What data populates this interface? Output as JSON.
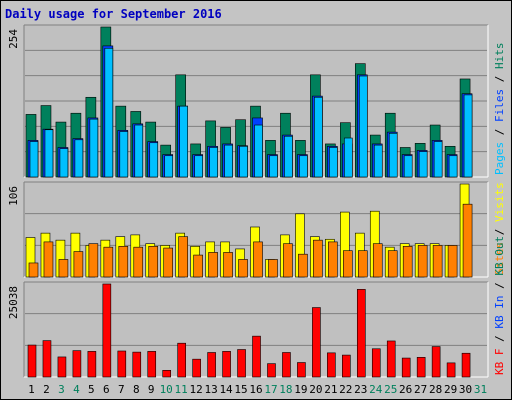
{
  "title": "Daily usage for September 2016",
  "colors": {
    "hits": "#00805c",
    "files": "#0040ff",
    "pages": "#00c0ff",
    "visits": "#ffff00",
    "sites": "#ff8000",
    "kbin": "#0040ff",
    "kbout": "#00805c",
    "kbf": "#ff0000",
    "weekend_day_label": "#00805c",
    "weekday_label": "#000000",
    "panel_bg": "#c0c0c0",
    "frame_bg": "#c4c4c4"
  },
  "chart_data": [
    {
      "type": "bar",
      "title": "Daily usage for September 2016",
      "categories": [
        "1",
        "2",
        "3",
        "4",
        "5",
        "6",
        "7",
        "8",
        "9",
        "10",
        "11",
        "12",
        "13",
        "14",
        "15",
        "16",
        "17",
        "18",
        "19",
        "20",
        "21",
        "22",
        "23",
        "24",
        "25",
        "26",
        "27",
        "28",
        "29",
        "30",
        "31"
      ],
      "weekend_days": [
        "3",
        "4",
        "10",
        "11",
        "17",
        "18",
        "24",
        "25",
        "31"
      ],
      "ymax_label": "254",
      "ylim": [
        0,
        254
      ],
      "axis_legend": [
        {
          "text": "Pages",
          "color_key": "pages"
        },
        {
          "text": " / ",
          "color_key": "weekday_label"
        },
        {
          "text": "Files",
          "color_key": "files"
        },
        {
          "text": " / ",
          "color_key": "weekday_label"
        },
        {
          "text": "Hits",
          "color_key": "hits"
        }
      ],
      "series": [
        {
          "name": "Hits",
          "color_key": "hits",
          "values": [
            106,
            121,
            93,
            108,
            135,
            254,
            120,
            111,
            93,
            54,
            173,
            56,
            95,
            84,
            97,
            120,
            62,
            108,
            62,
            173,
            56,
            92,
            192,
            71,
            108,
            50,
            57,
            88,
            52,
            166,
            0
          ]
        },
        {
          "name": "Files",
          "color_key": "files",
          "values": [
            62,
            81,
            50,
            65,
            100,
            222,
            79,
            90,
            60,
            38,
            120,
            38,
            52,
            56,
            53,
            100,
            38,
            71,
            38,
            137,
            52,
            56,
            173,
            56,
            76,
            38,
            45,
            62,
            38,
            141,
            0
          ]
        },
        {
          "name": "Pages",
          "color_key": "pages",
          "values": [
            60,
            80,
            48,
            63,
            98,
            218,
            77,
            88,
            58,
            36,
            120,
            36,
            50,
            54,
            52,
            88,
            36,
            69,
            36,
            135,
            50,
            66,
            171,
            54,
            74,
            36,
            43,
            60,
            36,
            139,
            0
          ]
        }
      ]
    },
    {
      "type": "bar",
      "ymax_label": "106",
      "ylim": [
        0,
        106
      ],
      "axis_legend": [
        {
          "text": "Sites",
          "color_key": "sites"
        },
        {
          "text": " / ",
          "color_key": "weekday_label"
        },
        {
          "text": "Visits",
          "color_key": "visits"
        }
      ],
      "series": [
        {
          "name": "Visits",
          "color_key": "visits",
          "values": [
            45,
            50,
            42,
            50,
            36,
            42,
            46,
            48,
            38,
            36,
            50,
            35,
            40,
            40,
            32,
            57,
            20,
            48,
            72,
            46,
            43,
            74,
            50,
            75,
            34,
            38,
            38,
            38,
            36,
            106,
            0
          ]
        },
        {
          "name": "Sites",
          "color_key": "sites",
          "values": [
            16,
            40,
            20,
            29,
            38,
            34,
            35,
            34,
            35,
            33,
            46,
            25,
            28,
            28,
            20,
            40,
            20,
            38,
            26,
            42,
            40,
            30,
            30,
            38,
            30,
            35,
            36,
            36,
            36,
            83,
            0
          ]
        }
      ]
    },
    {
      "type": "bar",
      "ymax_label": "25038",
      "ylim": [
        0,
        25038
      ],
      "axis_legend": [
        {
          "text": "KB F",
          "color_key": "kbf"
        },
        {
          "text": " / ",
          "color_key": "weekday_label"
        },
        {
          "text": "KB In",
          "color_key": "kbin"
        },
        {
          "text": " / ",
          "color_key": "weekday_label"
        },
        {
          "text": "KB Out",
          "color_key": "kbout"
        }
      ],
      "series": [
        {
          "name": "KB F",
          "color_key": "kbf",
          "values": [
            8600,
            9800,
            5400,
            7100,
            6900,
            25038,
            7000,
            6700,
            6900,
            1800,
            9100,
            4800,
            6600,
            6900,
            7400,
            11000,
            3600,
            6600,
            3900,
            18700,
            6500,
            5900,
            23600,
            7600,
            9700,
            5100,
            5300,
            8200,
            3800,
            6400,
            0
          ]
        }
      ]
    }
  ],
  "x_labels": [
    "1",
    "2",
    "3",
    "4",
    "5",
    "6",
    "7",
    "8",
    "9",
    "10",
    "11",
    "12",
    "13",
    "14",
    "15",
    "16",
    "17",
    "18",
    "19",
    "20",
    "21",
    "22",
    "23",
    "24",
    "25",
    "26",
    "27",
    "28",
    "29",
    "30",
    "31"
  ]
}
